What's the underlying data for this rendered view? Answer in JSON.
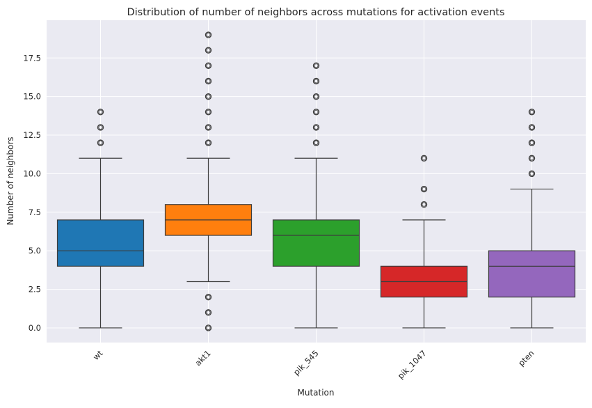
{
  "chart_data": {
    "type": "box",
    "title": "Distribution of number of neighbors across mutations for activation events",
    "xlabel": "Mutation",
    "ylabel": "Number of neighbors",
    "ylim": [
      -0.95,
      19.95
    ],
    "yticks": [
      0.0,
      2.5,
      5.0,
      7.5,
      10.0,
      12.5,
      15.0,
      17.5
    ],
    "ytick_labels": [
      "0.0",
      "2.5",
      "5.0",
      "7.5",
      "10.0",
      "12.5",
      "15.0",
      "17.5"
    ],
    "grid": true,
    "background": "#eaeaf2",
    "categories": [
      "wt",
      "akt1",
      "pik_545",
      "pik_1047",
      "pten"
    ],
    "series": [
      {
        "category": "wt",
        "color": "#1f77b4",
        "whisker_low": 0,
        "q1": 4,
        "median": 5,
        "q3": 7,
        "whisker_high": 11,
        "outliers": [
          12,
          13,
          14
        ]
      },
      {
        "category": "akt1",
        "color": "#ff7f0e",
        "whisker_low": 3,
        "q1": 6,
        "median": 7,
        "q3": 8,
        "whisker_high": 11,
        "outliers": [
          0,
          1,
          2,
          12,
          13,
          14,
          15,
          16,
          17,
          18,
          19
        ]
      },
      {
        "category": "pik_545",
        "color": "#2ca02c",
        "whisker_low": 0,
        "q1": 4,
        "median": 6,
        "q3": 7,
        "whisker_high": 11,
        "outliers": [
          12,
          13,
          14,
          15,
          16,
          17
        ]
      },
      {
        "category": "pik_1047",
        "color": "#d62728",
        "whisker_low": 0,
        "q1": 2,
        "median": 3,
        "q3": 4,
        "whisker_high": 7,
        "outliers": [
          8,
          9,
          11
        ]
      },
      {
        "category": "pten",
        "color": "#9467bd",
        "whisker_low": 0,
        "q1": 2,
        "median": 4,
        "q3": 5,
        "whisker_high": 9,
        "outliers": [
          10,
          11,
          12,
          13,
          14
        ]
      }
    ]
  }
}
